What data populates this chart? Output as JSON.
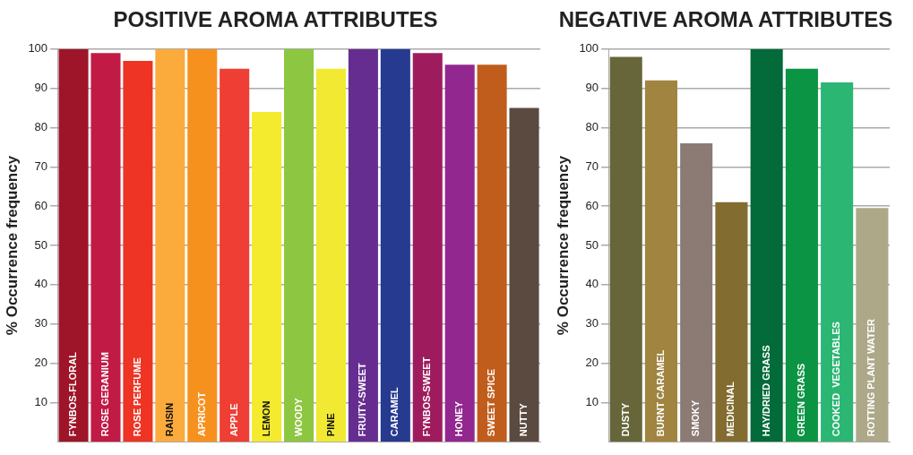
{
  "chart_data": [
    {
      "type": "bar",
      "title": "POSITIVE AROMA ATTRIBUTES",
      "ylabel": "% Occurrence frequency",
      "categories": [
        "FYNBOS-FLORAL",
        "ROSE GERANIUM",
        "ROSE PERFUME",
        "RAISIN",
        "APRICOT",
        "APPLE",
        "LEMON",
        "WOODY",
        "PINE",
        "FRUITY-SWEET",
        "CARAMEL",
        "FYNBOS-SWEET",
        "HONEY",
        "SWEET SPICE",
        "NUTTY"
      ],
      "values": [
        100,
        99,
        97,
        100,
        100,
        95,
        84,
        100,
        95,
        100,
        100,
        99,
        96,
        96,
        85
      ],
      "colors": [
        "#9e1428",
        "#c01a45",
        "#ee3424",
        "#fbab3c",
        "#f6911e",
        "#ef3e33",
        "#f4ea2e",
        "#8dc641",
        "#f1e932",
        "#662d91",
        "#263a90",
        "#9e1c5e",
        "#92278f",
        "#c05d1c",
        "#5b4a40"
      ],
      "ylim": [
        0,
        100
      ],
      "yticks": [
        10,
        20,
        30,
        40,
        50,
        60,
        70,
        80,
        90,
        100
      ],
      "grid": "y",
      "legend": false
    },
    {
      "type": "bar",
      "title": "NEGATIVE AROMA ATTRIBUTES",
      "ylabel": "% Occurrence frequency",
      "categories": [
        "DUSTY",
        "BURNT CARAMEL",
        "SMOKY",
        "MEDICINAL",
        "HAY/DRIED GRASS",
        "GREEN GRASS",
        "COOKED  VEGETABLES",
        "ROTTING PLANT WATER"
      ],
      "values": [
        98,
        92,
        76,
        61,
        100,
        95,
        91.5,
        59.5
      ],
      "colors": [
        "#66663a",
        "#a08440",
        "#8c7b74",
        "#826c30",
        "#036a3a",
        "#0b9444",
        "#2bb673",
        "#aca888"
      ],
      "ylim": [
        0,
        100
      ],
      "yticks": [
        10,
        20,
        30,
        40,
        50,
        60,
        70,
        80,
        90,
        100
      ],
      "grid": "y",
      "legend": false
    }
  ]
}
